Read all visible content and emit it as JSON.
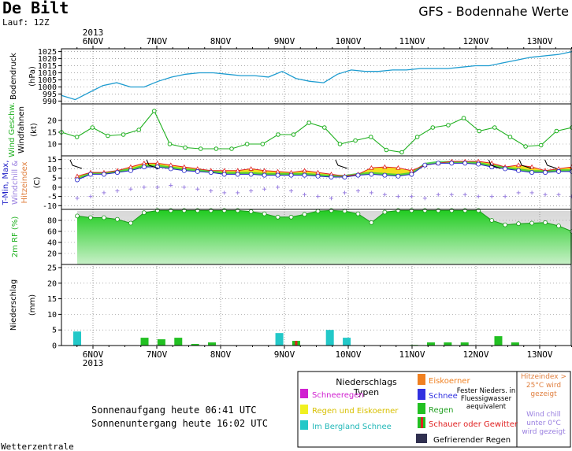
{
  "header": {
    "station": "De Bilt",
    "run": "Lauf: 12Z",
    "title": "GFS - Bodennahe Werte",
    "year": "2013"
  },
  "footer": {
    "sunrise": "Sonnenaufgang heute 06:41 UTC",
    "sunset": "Sonnenuntergang heute 16:02 UTC",
    "credit": "Wetterzentrale"
  },
  "legend": {
    "title": "Niederschlags Typen",
    "items": {
      "schneeregen": "Schneeregen",
      "regen_eiskoerner": "Regen und Eiskoerner",
      "bergland": "Im Bergland Schnee",
      "eiskoerner": "Eiskoerner",
      "schnee": "Schnee",
      "regen": "Regen",
      "schauer": "Schauer oder Gewitter",
      "gefrierend": "Gefrierender Regen",
      "fester": "Fester Nieders. in Fluessigwasser aequivalent"
    },
    "hitzeindex_note": "Hitzeindex > 25°C wird gezeigt",
    "windchill_note": "Wind chill unter 0°C wird gezeigt"
  },
  "colors": {
    "pressure": "#1e9cd0",
    "wind": "#1fb01f",
    "tmax": "#e02020",
    "tmin": "#2020c8",
    "band": "#f0e020",
    "hitze_text": "#e08040",
    "windchill": "#9a80e0",
    "rh_fill": "#2fcf2f",
    "precip_rain": "#22c022",
    "precip_berg": "#22c8c8",
    "grid": "#777777"
  },
  "chart_data": [
    {
      "type": "line",
      "panel": "pressure",
      "ylabel": "Bodendruck (hPa)",
      "yticks": [
        990,
        995,
        1000,
        1005,
        1010,
        1015,
        1020,
        1025
      ],
      "ylim": [
        988,
        1027
      ],
      "x_day_labels": [
        "6NOV",
        "7NOV",
        "8NOV",
        "9NOV",
        "10NOV",
        "11NOV",
        "12NOV",
        "13NOV"
      ],
      "values": [
        994,
        991,
        996,
        1001,
        1003,
        1000,
        1000,
        1004,
        1007,
        1009,
        1010,
        1010,
        1009,
        1008,
        1008,
        1007,
        1011,
        1006,
        1004,
        1003,
        1009,
        1012,
        1011,
        1011,
        1012,
        1012,
        1013,
        1013,
        1013,
        1014,
        1015,
        1015,
        1017,
        1019,
        1021,
        1022,
        1023,
        1025
      ]
    },
    {
      "type": "line",
      "panel": "wind",
      "ylabel": "Wind Geschw. Windfahnen (kt)",
      "yticks": [
        10,
        15,
        20
      ],
      "ylim": [
        5,
        27
      ],
      "values": [
        15,
        13,
        17,
        13.5,
        14,
        16,
        24,
        10,
        8.5,
        8,
        8,
        8,
        10,
        10,
        14,
        14,
        19,
        17,
        10,
        11.5,
        13,
        7.5,
        6.5,
        13,
        17,
        18,
        21,
        15.5,
        17,
        13,
        9,
        9.5,
        15.5,
        17
      ]
    },
    {
      "type": "area",
      "panel": "temperature",
      "ylabel": "T-Min, Max, Windchill & Hitzeindex (C)",
      "yticks": [
        -10,
        -5,
        0,
        5,
        10,
        15
      ],
      "ylim": [
        -12,
        17
      ],
      "series": [
        {
          "name": "T-Max",
          "values": [
            6,
            8,
            8,
            9,
            11,
            13,
            13,
            12,
            11,
            10,
            9,
            9,
            9,
            10,
            9,
            8.5,
            8,
            9,
            8,
            7,
            6,
            7,
            10.5,
            11,
            10.5,
            9,
            12,
            13,
            14,
            14,
            14,
            13,
            11,
            12,
            11,
            9,
            10,
            11
          ]
        },
        {
          "name": "T-Min",
          "values": [
            4,
            7,
            7,
            8,
            9,
            11,
            11,
            10,
            9,
            8.5,
            8,
            7,
            7,
            7,
            6.5,
            6.5,
            6.5,
            6.5,
            6,
            5.5,
            5.5,
            6.5,
            7,
            6.5,
            6,
            7,
            12,
            13,
            13,
            13,
            12.5,
            11,
            10,
            9,
            8,
            8,
            8.5,
            8.5
          ]
        },
        {
          "name": "Windchill",
          "values": [
            -6,
            -5,
            -3,
            -2,
            -1,
            0,
            0,
            1,
            0,
            -1,
            -2,
            -3,
            -3,
            -2,
            -1,
            0,
            -2,
            -4,
            -5,
            -6,
            -3,
            -2,
            -3,
            -4,
            -5,
            -5,
            -6,
            -4,
            -4,
            -4,
            -5,
            -5,
            -5,
            -3,
            -3,
            -4,
            -4,
            -5
          ]
        }
      ]
    },
    {
      "type": "area",
      "panel": "rh",
      "ylabel": "2m RF (%)",
      "yticks": [
        20,
        40,
        60,
        80
      ],
      "ylim": [
        0,
        100
      ],
      "values": [
        88,
        85,
        85,
        82,
        75,
        94,
        98,
        98,
        98,
        98,
        98,
        98,
        98,
        96,
        92,
        86,
        86,
        91,
        97,
        98,
        97,
        92,
        76,
        95,
        98,
        98,
        98,
        98,
        98,
        98,
        98,
        80,
        72,
        74,
        75,
        76,
        70,
        60
      ]
    },
    {
      "type": "bar",
      "panel": "precip",
      "ylabel": "Niederschlag (mm)",
      "yticks": [
        0,
        5,
        10,
        15,
        20,
        25
      ],
      "ylim": [
        0,
        26
      ],
      "series": [
        {
          "name": "Regen",
          "values": [
            0,
            0,
            0,
            0,
            2.5,
            2,
            2.5,
            0.5,
            1,
            0,
            0,
            0,
            0,
            0,
            0,
            0,
            0,
            0,
            0,
            0,
            0.2,
            1,
            1,
            1,
            0,
            3,
            1,
            0,
            0,
            0
          ]
        },
        {
          "name": "Im Bergland Schnee",
          "values": [
            4.5,
            0,
            0,
            0,
            0,
            0,
            0,
            0,
            0,
            0,
            0,
            0,
            4,
            0,
            0,
            5,
            2.5,
            0,
            0,
            0,
            0,
            0,
            0,
            0,
            0,
            0,
            0,
            0,
            0,
            0
          ]
        },
        {
          "name": "Schauer oder Gewitter",
          "values": [
            0,
            0,
            0,
            0,
            0,
            0,
            0,
            0,
            0,
            0,
            0,
            0,
            0,
            1.5,
            0,
            0,
            0,
            0,
            0,
            0,
            0,
            0,
            0,
            0,
            0,
            0,
            0,
            0,
            0,
            0
          ]
        }
      ]
    }
  ]
}
